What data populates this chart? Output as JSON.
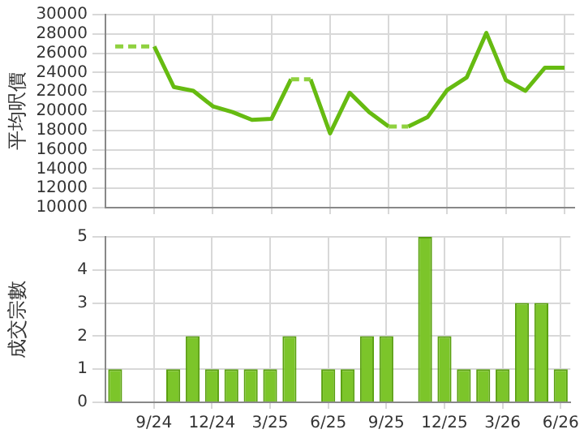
{
  "chart_data": [
    {
      "type": "line",
      "ylabel": "平均呎價",
      "categories": [
        null,
        null,
        null,
        null,
        null,
        null,
        null,
        null,
        null,
        null,
        null,
        null,
        null,
        null,
        null,
        null,
        null,
        null,
        null,
        null,
        null,
        null,
        null,
        null
      ],
      "series": [
        {
          "color": "#66bb11",
          "line_style": "solid",
          "values": [
            null,
            null,
            26700,
            22500,
            22100,
            20500,
            19900,
            19100,
            19200,
            23300,
            23300,
            17700,
            21900,
            19900,
            18400,
            18400,
            19400,
            22200,
            23500,
            28100,
            23200,
            22100,
            24500,
            24500
          ]
        },
        {
          "color": "#8fd13f",
          "line_style": "dotted",
          "values": [
            26700,
            26700,
            26700,
            null,
            null,
            null,
            null,
            null,
            null,
            23300,
            23300,
            null,
            null,
            null,
            18400,
            18400,
            null,
            null,
            null,
            null,
            null,
            null,
            null,
            null
          ]
        }
      ],
      "ylim": [
        10000,
        30000
      ],
      "yticks": [
        10000,
        12000,
        14000,
        16000,
        18000,
        20000,
        22000,
        24000,
        26000,
        28000,
        30000
      ],
      "grid": true,
      "tick_labels": "y",
      "marker": "none"
    },
    {
      "type": "bar",
      "ylabel": "成交宗數",
      "categories": [
        null,
        null,
        "9/24",
        null,
        null,
        "12/24",
        null,
        null,
        "3/25",
        null,
        null,
        "6/25",
        null,
        null,
        "9/25",
        null,
        null,
        "12/25",
        null,
        null,
        "3/26",
        null,
        null,
        "6/26"
      ],
      "values": [
        1,
        0,
        0,
        1,
        2,
        1,
        1,
        1,
        1,
        2,
        0,
        1,
        1,
        2,
        2,
        0,
        5,
        2,
        1,
        1,
        1,
        3,
        3,
        1
      ],
      "color": "#7cc52a",
      "ylim": [
        0,
        5
      ],
      "yticks": [
        0,
        1,
        2,
        3,
        4,
        5
      ],
      "grid": true
    }
  ]
}
